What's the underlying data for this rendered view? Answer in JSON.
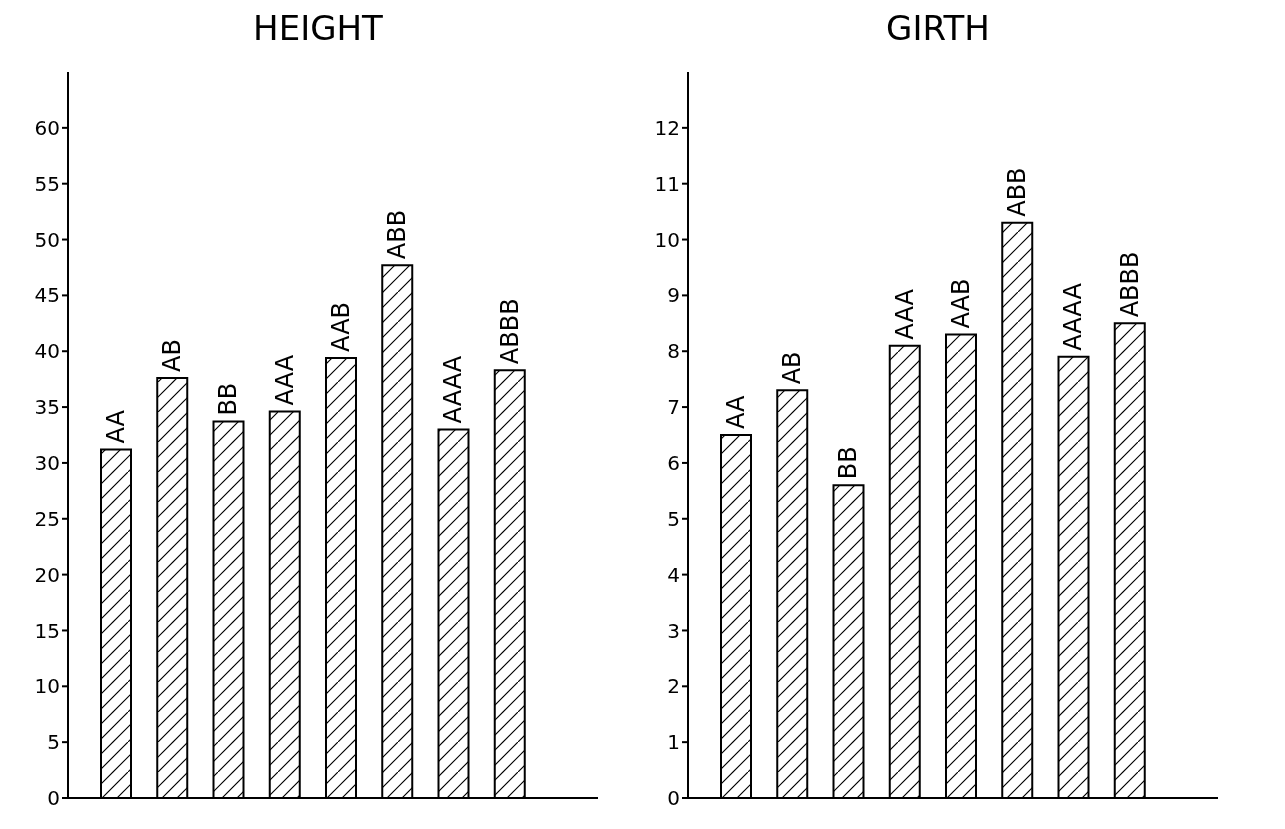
{
  "chart_data": [
    {
      "type": "bar",
      "title": "HEIGHT",
      "categories": [
        "AA",
        "AB",
        "BB",
        "AAA",
        "AAB",
        "ABB",
        "AAAA",
        "ABBB"
      ],
      "values": [
        31.2,
        37.6,
        33.7,
        34.6,
        39.4,
        47.7,
        33.0,
        38.3
      ],
      "color": "#000000",
      "ylim": [
        0,
        65
      ],
      "yticks": [
        0,
        5,
        10,
        15,
        20,
        25,
        30,
        35,
        40,
        45,
        50,
        55,
        60
      ],
      "grid": false,
      "legend": false
    },
    {
      "type": "bar",
      "title": "GIRTH",
      "categories": [
        "AA",
        "AB",
        "BB",
        "AAA",
        "AAB",
        "ABB",
        "AAAA",
        "ABBB"
      ],
      "values": [
        6.5,
        7.3,
        5.6,
        8.1,
        8.3,
        10.3,
        7.9,
        8.5
      ],
      "color": "#000000",
      "ylim": [
        0,
        13
      ],
      "yticks": [
        0,
        1,
        2,
        3,
        4,
        5,
        6,
        7,
        8,
        9,
        10,
        11,
        12
      ],
      "grid": false,
      "legend": false
    }
  ]
}
